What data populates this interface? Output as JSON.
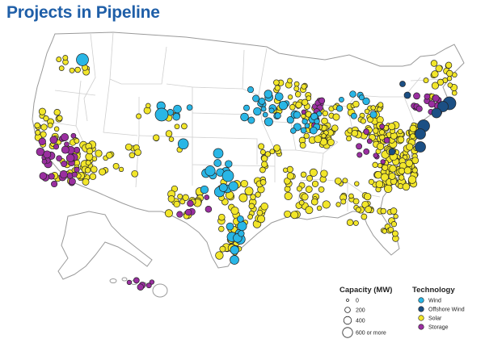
{
  "title": "Projects in Pipeline",
  "colors": {
    "wind": "#29b6e6",
    "offshore_wind": "#1b4f84",
    "solar": "#f2e62a",
    "storage": "#9a2fa0",
    "outline": "#222222",
    "land": "#ffffff",
    "border": "#b5b5b5"
  },
  "legend": {
    "capacity_title": "Capacity (MW)",
    "capacity_items": [
      {
        "label": "0",
        "mw": 0
      },
      {
        "label": "200",
        "mw": 200
      },
      {
        "label": "400",
        "mw": 400
      },
      {
        "label": "600 or more",
        "mw": 600
      }
    ],
    "technology_title": "Technology",
    "technology_items": [
      {
        "label": "Wind",
        "color": "#29b6e6"
      },
      {
        "label": "Offshore Wind",
        "color": "#1b4f84"
      },
      {
        "label": "Solar",
        "color": "#f2e62a"
      },
      {
        "label": "Storage",
        "color": "#9a2fa0"
      }
    ]
  }
}
